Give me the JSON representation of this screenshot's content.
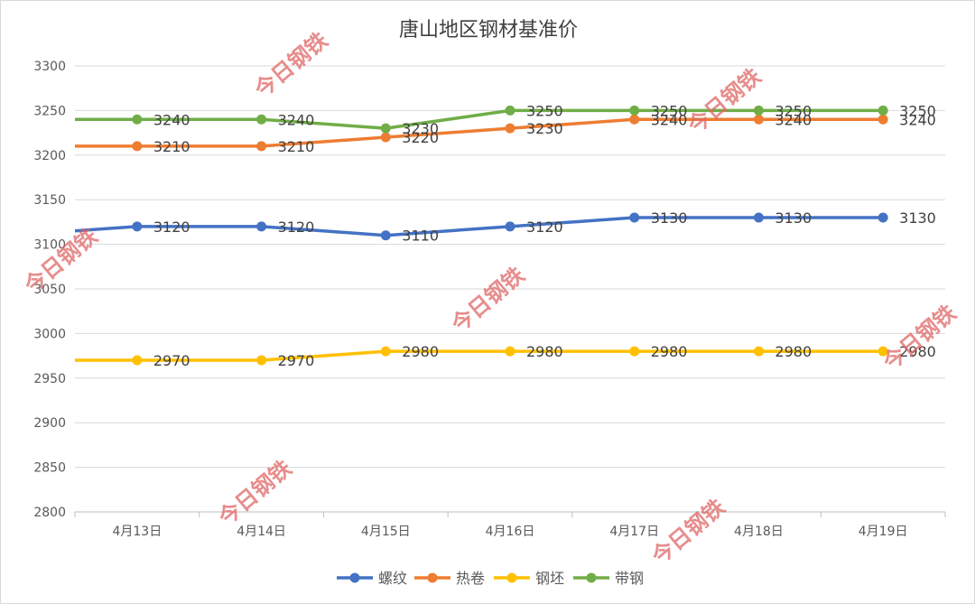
{
  "chart_data": {
    "type": "line",
    "title": "唐山地区钢材基准价",
    "categories": [
      "4月13日",
      "4月14日",
      "4月15日",
      "4月16日",
      "4月17日",
      "4月18日",
      "4月19日"
    ],
    "ylim": [
      2800,
      3300
    ],
    "yticks": [
      2800,
      2850,
      2900,
      2950,
      3000,
      3050,
      3100,
      3150,
      3200,
      3250,
      3300
    ],
    "grid": true,
    "legend_position": "bottom",
    "series": [
      {
        "name": "螺纹",
        "color": "#4472c4",
        "values": [
          3120,
          3120,
          3110,
          3120,
          3130,
          3130,
          3130
        ],
        "start": 3115
      },
      {
        "name": "热卷",
        "color": "#ed7d31",
        "values": [
          3210,
          3210,
          3220,
          3230,
          3240,
          3240,
          3240
        ],
        "start": 3210
      },
      {
        "name": "钢坯",
        "color": "#ffc000",
        "values": [
          2970,
          2970,
          2980,
          2980,
          2980,
          2980,
          2980
        ],
        "start": 2970
      },
      {
        "name": "带钢",
        "color": "#70ad47",
        "values": [
          3240,
          3240,
          3230,
          3250,
          3250,
          3250,
          3250
        ],
        "start": 3240
      }
    ]
  },
  "watermark": "今日钢铁"
}
